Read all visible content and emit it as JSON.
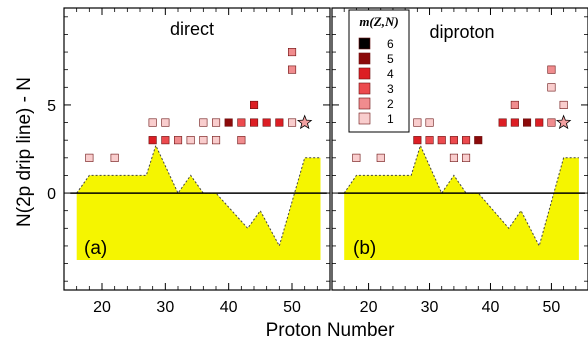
{
  "chart_data": [
    {
      "type": "scatter",
      "panel_tag": "(a)",
      "title": "direct",
      "xlabel": "Proton Number",
      "ylabel": "N(2p drip line) - N",
      "xlim": [
        14,
        56
      ],
      "ylim": [
        -5.5,
        10.5
      ],
      "xticks": [
        20,
        30,
        40,
        50
      ],
      "yticks": [
        0,
        5
      ],
      "yellow_region_top": [
        [
          16,
          0
        ],
        [
          18,
          1
        ],
        [
          27,
          1
        ],
        [
          28.5,
          2.7
        ],
        [
          32,
          0
        ],
        [
          34,
          1
        ],
        [
          36,
          0
        ],
        [
          38,
          0
        ],
        [
          43,
          -2
        ],
        [
          45,
          -1
        ],
        [
          48,
          -3
        ],
        [
          52,
          2
        ],
        [
          54.5,
          2
        ]
      ],
      "yellow_region_bottom": -3.8,
      "zero_line": 0,
      "points": [
        {
          "x": 18,
          "y": 2,
          "m": 1
        },
        {
          "x": 22,
          "y": 2,
          "m": 1
        },
        {
          "x": 28,
          "y": 4,
          "m": 1
        },
        {
          "x": 28,
          "y": 3,
          "m": 4
        },
        {
          "x": 30,
          "y": 4,
          "m": 1
        },
        {
          "x": 30,
          "y": 3,
          "m": 3
        },
        {
          "x": 32,
          "y": 3,
          "m": 2
        },
        {
          "x": 34,
          "y": 3,
          "m": 1
        },
        {
          "x": 36,
          "y": 4,
          "m": 1
        },
        {
          "x": 36,
          "y": 3,
          "m": 1
        },
        {
          "x": 38,
          "y": 4,
          "m": 1
        },
        {
          "x": 38,
          "y": 3,
          "m": 1
        },
        {
          "x": 40,
          "y": 4,
          "m": 5
        },
        {
          "x": 42,
          "y": 4,
          "m": 3
        },
        {
          "x": 42,
          "y": 3,
          "m": 2
        },
        {
          "x": 44,
          "y": 5,
          "m": 4
        },
        {
          "x": 44,
          "y": 4,
          "m": 4
        },
        {
          "x": 46,
          "y": 4,
          "m": 4
        },
        {
          "x": 48,
          "y": 4,
          "m": 4
        },
        {
          "x": 50,
          "y": 8,
          "m": 2
        },
        {
          "x": 50,
          "y": 7,
          "m": 2
        },
        {
          "x": 50,
          "y": 4,
          "m": 1
        }
      ],
      "stars": [
        {
          "x": 52,
          "y": 4
        }
      ]
    },
    {
      "type": "scatter",
      "panel_tag": "(b)",
      "title": "diproton",
      "xlabel": "Proton Number",
      "xlim": [
        14,
        56
      ],
      "ylim": [
        -5.5,
        10.5
      ],
      "xticks": [
        20,
        30,
        40,
        50
      ],
      "yticks": [
        0,
        5
      ],
      "yellow_region_top": [
        [
          16,
          0
        ],
        [
          18,
          1
        ],
        [
          27,
          1
        ],
        [
          28.5,
          2.7
        ],
        [
          32,
          0
        ],
        [
          34,
          1
        ],
        [
          36,
          0
        ],
        [
          38,
          0
        ],
        [
          43,
          -2
        ],
        [
          45,
          -1
        ],
        [
          48,
          -3
        ],
        [
          52,
          2
        ],
        [
          54.5,
          2
        ]
      ],
      "yellow_region_bottom": -3.8,
      "zero_line": 0,
      "points": [
        {
          "x": 18,
          "y": 2,
          "m": 1
        },
        {
          "x": 22,
          "y": 2,
          "m": 1
        },
        {
          "x": 28,
          "y": 4,
          "m": 1
        },
        {
          "x": 28,
          "y": 3,
          "m": 4
        },
        {
          "x": 30,
          "y": 4,
          "m": 1
        },
        {
          "x": 30,
          "y": 3,
          "m": 3
        },
        {
          "x": 32,
          "y": 3,
          "m": 3
        },
        {
          "x": 34,
          "y": 3,
          "m": 3
        },
        {
          "x": 34,
          "y": 2,
          "m": 1
        },
        {
          "x": 36,
          "y": 3,
          "m": 3
        },
        {
          "x": 36,
          "y": 2,
          "m": 1
        },
        {
          "x": 38,
          "y": 3,
          "m": 5
        },
        {
          "x": 42,
          "y": 4,
          "m": 4
        },
        {
          "x": 44,
          "y": 5,
          "m": 2
        },
        {
          "x": 44,
          "y": 4,
          "m": 4
        },
        {
          "x": 46,
          "y": 4,
          "m": 5
        },
        {
          "x": 48,
          "y": 4,
          "m": 4
        },
        {
          "x": 50,
          "y": 7,
          "m": 2
        },
        {
          "x": 50,
          "y": 6,
          "m": 1
        },
        {
          "x": 50,
          "y": 4,
          "m": 2
        },
        {
          "x": 52,
          "y": 5,
          "m": 1
        }
      ],
      "stars": [
        {
          "x": 52,
          "y": 4
        }
      ]
    }
  ],
  "legend": {
    "title": "m(Z,N)",
    "placement": "top-left of panel (b)",
    "entries": [
      {
        "label": "6",
        "color": "#000000"
      },
      {
        "label": "5",
        "color": "#8b0a0a"
      },
      {
        "label": "4",
        "color": "#dc1e24"
      },
      {
        "label": "3",
        "color": "#ec4a4e"
      },
      {
        "label": "2",
        "color": "#f08c8e"
      },
      {
        "label": "1",
        "color": "#f9cdcd"
      }
    ]
  },
  "colors": {
    "yellow_fill": "#f5f500",
    "star_fill": "#f2a0a0",
    "zero_line": "#000000"
  }
}
